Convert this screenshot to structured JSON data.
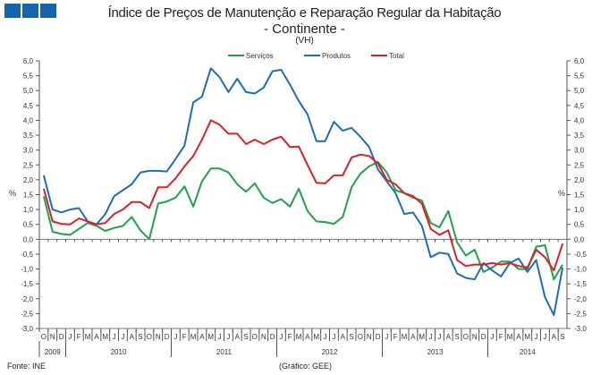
{
  "chart_data": {
    "type": "line",
    "title": "Índice de Preços de Manutenção e Reparação Regular da Habitação",
    "subtitle": "- Continente -",
    "unit_note": "(VH)",
    "ylabel": "%",
    "ylim": [
      -3.0,
      6.0
    ],
    "yticks": [
      "6,0",
      "5,5",
      "5,0",
      "4,5",
      "4,0",
      "3,5",
      "3,0",
      "2,5",
      "2,0",
      "1,5",
      "1,0",
      "0,5",
      "0,0",
      "-0,5",
      "-1,0",
      "-1,5",
      "-2,0",
      "-2,5",
      "-3,0"
    ],
    "legend_position": "top-center",
    "months": [
      "O",
      "N",
      "D",
      "J",
      "F",
      "M",
      "A",
      "M",
      "J",
      "J",
      "A",
      "S",
      "O",
      "N",
      "D",
      "J",
      "F",
      "M",
      "A",
      "M",
      "J",
      "J",
      "A",
      "S",
      "O",
      "N",
      "D",
      "J",
      "F",
      "M",
      "A",
      "M",
      "J",
      "J",
      "A",
      "S",
      "O",
      "N",
      "D",
      "J",
      "F",
      "M",
      "A",
      "M",
      "J",
      "J",
      "A",
      "S",
      "O",
      "N",
      "D",
      "J",
      "F",
      "M",
      "A",
      "M",
      "J",
      "J",
      "A",
      "S"
    ],
    "years": [
      {
        "label": "2009",
        "start": 0,
        "count": 3
      },
      {
        "label": "2010",
        "start": 3,
        "count": 12
      },
      {
        "label": "2011",
        "start": 15,
        "count": 12
      },
      {
        "label": "2012",
        "start": 27,
        "count": 12
      },
      {
        "label": "2013",
        "start": 39,
        "count": 12
      },
      {
        "label": "2014",
        "start": 51,
        "count": 9
      }
    ],
    "series": [
      {
        "name": "Serviços",
        "color": "#22a04b",
        "values": [
          1.45,
          0.25,
          0.18,
          0.15,
          0.35,
          0.55,
          0.45,
          0.28,
          0.38,
          0.45,
          0.75,
          0.3,
          0.0,
          1.2,
          1.27,
          1.4,
          1.78,
          1.1,
          1.95,
          2.38,
          2.38,
          2.25,
          1.85,
          1.6,
          1.88,
          1.4,
          1.22,
          1.35,
          1.1,
          1.7,
          0.95,
          0.6,
          0.58,
          0.52,
          0.75,
          1.75,
          2.2,
          2.45,
          2.6,
          2.25,
          1.65,
          1.55,
          1.4,
          1.3,
          0.55,
          0.4,
          0.95,
          -0.1,
          -0.55,
          -0.35,
          -1.1,
          -0.95,
          -0.75,
          -0.75,
          -1.0,
          -1.0,
          -0.25,
          -0.2,
          -1.35,
          -0.85
        ]
      },
      {
        "name": "Produtos",
        "color": "#1f6db5",
        "values": [
          2.15,
          1.0,
          0.9,
          1.0,
          1.05,
          0.6,
          0.5,
          0.85,
          1.45,
          1.65,
          1.85,
          2.25,
          2.3,
          2.3,
          2.28,
          2.7,
          3.15,
          4.6,
          4.8,
          5.75,
          5.45,
          4.95,
          5.4,
          4.95,
          4.9,
          5.1,
          5.65,
          5.7,
          5.2,
          4.65,
          4.2,
          3.3,
          3.3,
          3.95,
          3.65,
          3.75,
          3.45,
          3.1,
          2.35,
          1.95,
          1.55,
          0.85,
          0.9,
          0.45,
          -0.6,
          -0.45,
          -0.5,
          -1.15,
          -1.3,
          -1.35,
          -0.8,
          -1.05,
          -1.25,
          -0.8,
          -0.65,
          -1.1,
          -0.7,
          -1.95,
          -2.55,
          -0.95
        ]
      },
      {
        "name": "Total",
        "color": "#d92126",
        "values": [
          1.7,
          0.6,
          0.52,
          0.5,
          0.7,
          0.6,
          0.5,
          0.55,
          0.85,
          1.0,
          1.25,
          1.25,
          1.05,
          1.75,
          1.75,
          2.05,
          2.45,
          2.8,
          3.35,
          4.0,
          3.85,
          3.55,
          3.55,
          3.2,
          3.35,
          3.2,
          3.35,
          3.45,
          3.1,
          3.12,
          2.5,
          1.9,
          1.88,
          2.15,
          2.15,
          2.75,
          2.85,
          2.8,
          2.55,
          2.0,
          1.85,
          1.55,
          1.45,
          1.2,
          0.35,
          0.15,
          0.3,
          -0.7,
          -0.9,
          -0.85,
          -0.85,
          -0.8,
          -0.85,
          -0.8,
          -0.9,
          -0.95,
          -0.35,
          -0.6,
          -1.05,
          -0.15
        ]
      }
    ]
  },
  "source": "Fonte: INE",
  "credit": "(Gráfico: GEE)"
}
